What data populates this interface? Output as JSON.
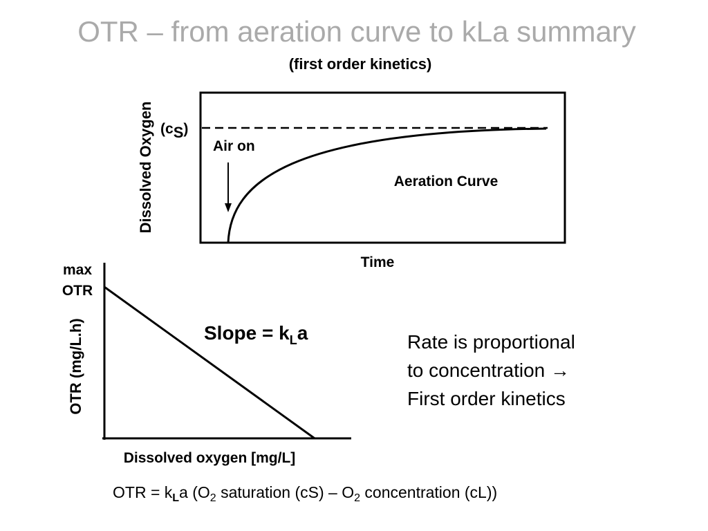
{
  "title": "OTR – from aeration curve to kLa summary",
  "subtitle": "(first order kinetics)",
  "top_chart": {
    "y_label": "Dissolved Oxygen",
    "x_label": "Time",
    "cs_label": [
      "(c",
      "S",
      ")"
    ],
    "air_on": "Air on",
    "curve_label": "Aeration Curve"
  },
  "bottom_chart": {
    "y_label": "OTR (mg/L.h)",
    "x_label": "Dissolved oxygen [mg/L]",
    "max_label": [
      "max",
      "OTR"
    ],
    "slope": [
      "Slope = k",
      "L",
      "a"
    ]
  },
  "note": [
    "Rate is proportional",
    "to concentration →",
    "First order kinetics"
  ],
  "equation": [
    "OTR = k",
    "L",
    "a (O",
    "2",
    " saturation (cS) – O",
    "2",
    " concentration (cL))"
  ]
}
